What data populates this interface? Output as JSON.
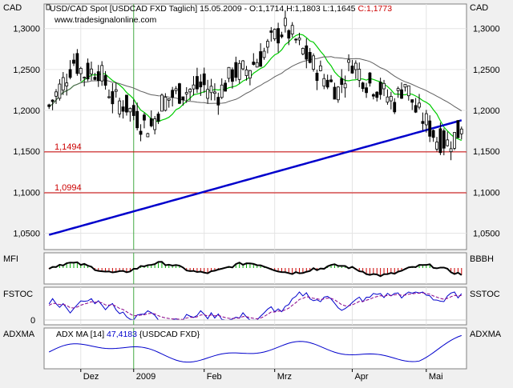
{
  "header": {
    "title": "USD/CAD Spot [USDCAD FXD  Taglich] 15.05.2009 - O:1,1714 H:1,1803 L:1,1645",
    "close_label": "C:1,1773",
    "source": "www.tradesignalonline.com"
  },
  "colors": {
    "background": "#f0f0f0",
    "panel": "#ffffff",
    "candle": "#000000",
    "sma_short": "#00cc00",
    "sma_medium": "#606060",
    "sma_long": "#0000cc",
    "hline": "#cc0000",
    "mfi_pos": "#00aa00",
    "mfi_neg": "#cc0000",
    "stoch_fast": "#0000cc",
    "stoch_slow": "#880088",
    "adx": "#0000cc",
    "close_text": "#cc0000"
  },
  "panels": {
    "price": {
      "left_label": "CAD",
      "right_label": "CAD"
    },
    "mfi": {
      "left_label": "MFI",
      "right_label": "BBBH"
    },
    "stoch": {
      "left_label": "FSTOC",
      "right_label": "SSTOC",
      "ticks": [
        "0"
      ]
    },
    "adx": {
      "left_label": "ADXMA",
      "right_label": "ADXMA",
      "legend_prefix": "ADX MA [14]",
      "legend_value": "47,4183",
      "legend_suffix": "{USDCAD FXD}"
    }
  },
  "chart_data": {
    "type": "candlestick",
    "y_axis": {
      "min": 1.03,
      "max": 1.33,
      "ticks": [
        1.05,
        1.1,
        1.15,
        1.2,
        1.25,
        1.3
      ],
      "tick_labels": [
        "1,0500",
        "1,1000",
        "1,1500",
        "1,2000",
        "1,2500",
        "1,3000"
      ]
    },
    "x_axis": {
      "months": [
        {
          "label": "Dez",
          "index": 9
        },
        {
          "label": "2009",
          "index": 24
        },
        {
          "label": "Feb",
          "index": 44
        },
        {
          "label": "Mrz",
          "index": 64
        },
        {
          "label": "Apr",
          "index": 86
        },
        {
          "label": "Mai",
          "index": 107
        }
      ],
      "count": 118
    },
    "horizontal_lines": [
      {
        "value": 1.1494,
        "label": "1,1494"
      },
      {
        "value": 1.0994,
        "label": "1,0994"
      }
    ],
    "last_candle": {
      "open": 1.1714,
      "high": 1.1803,
      "low": 1.1645,
      "close": 1.1773
    }
  }
}
